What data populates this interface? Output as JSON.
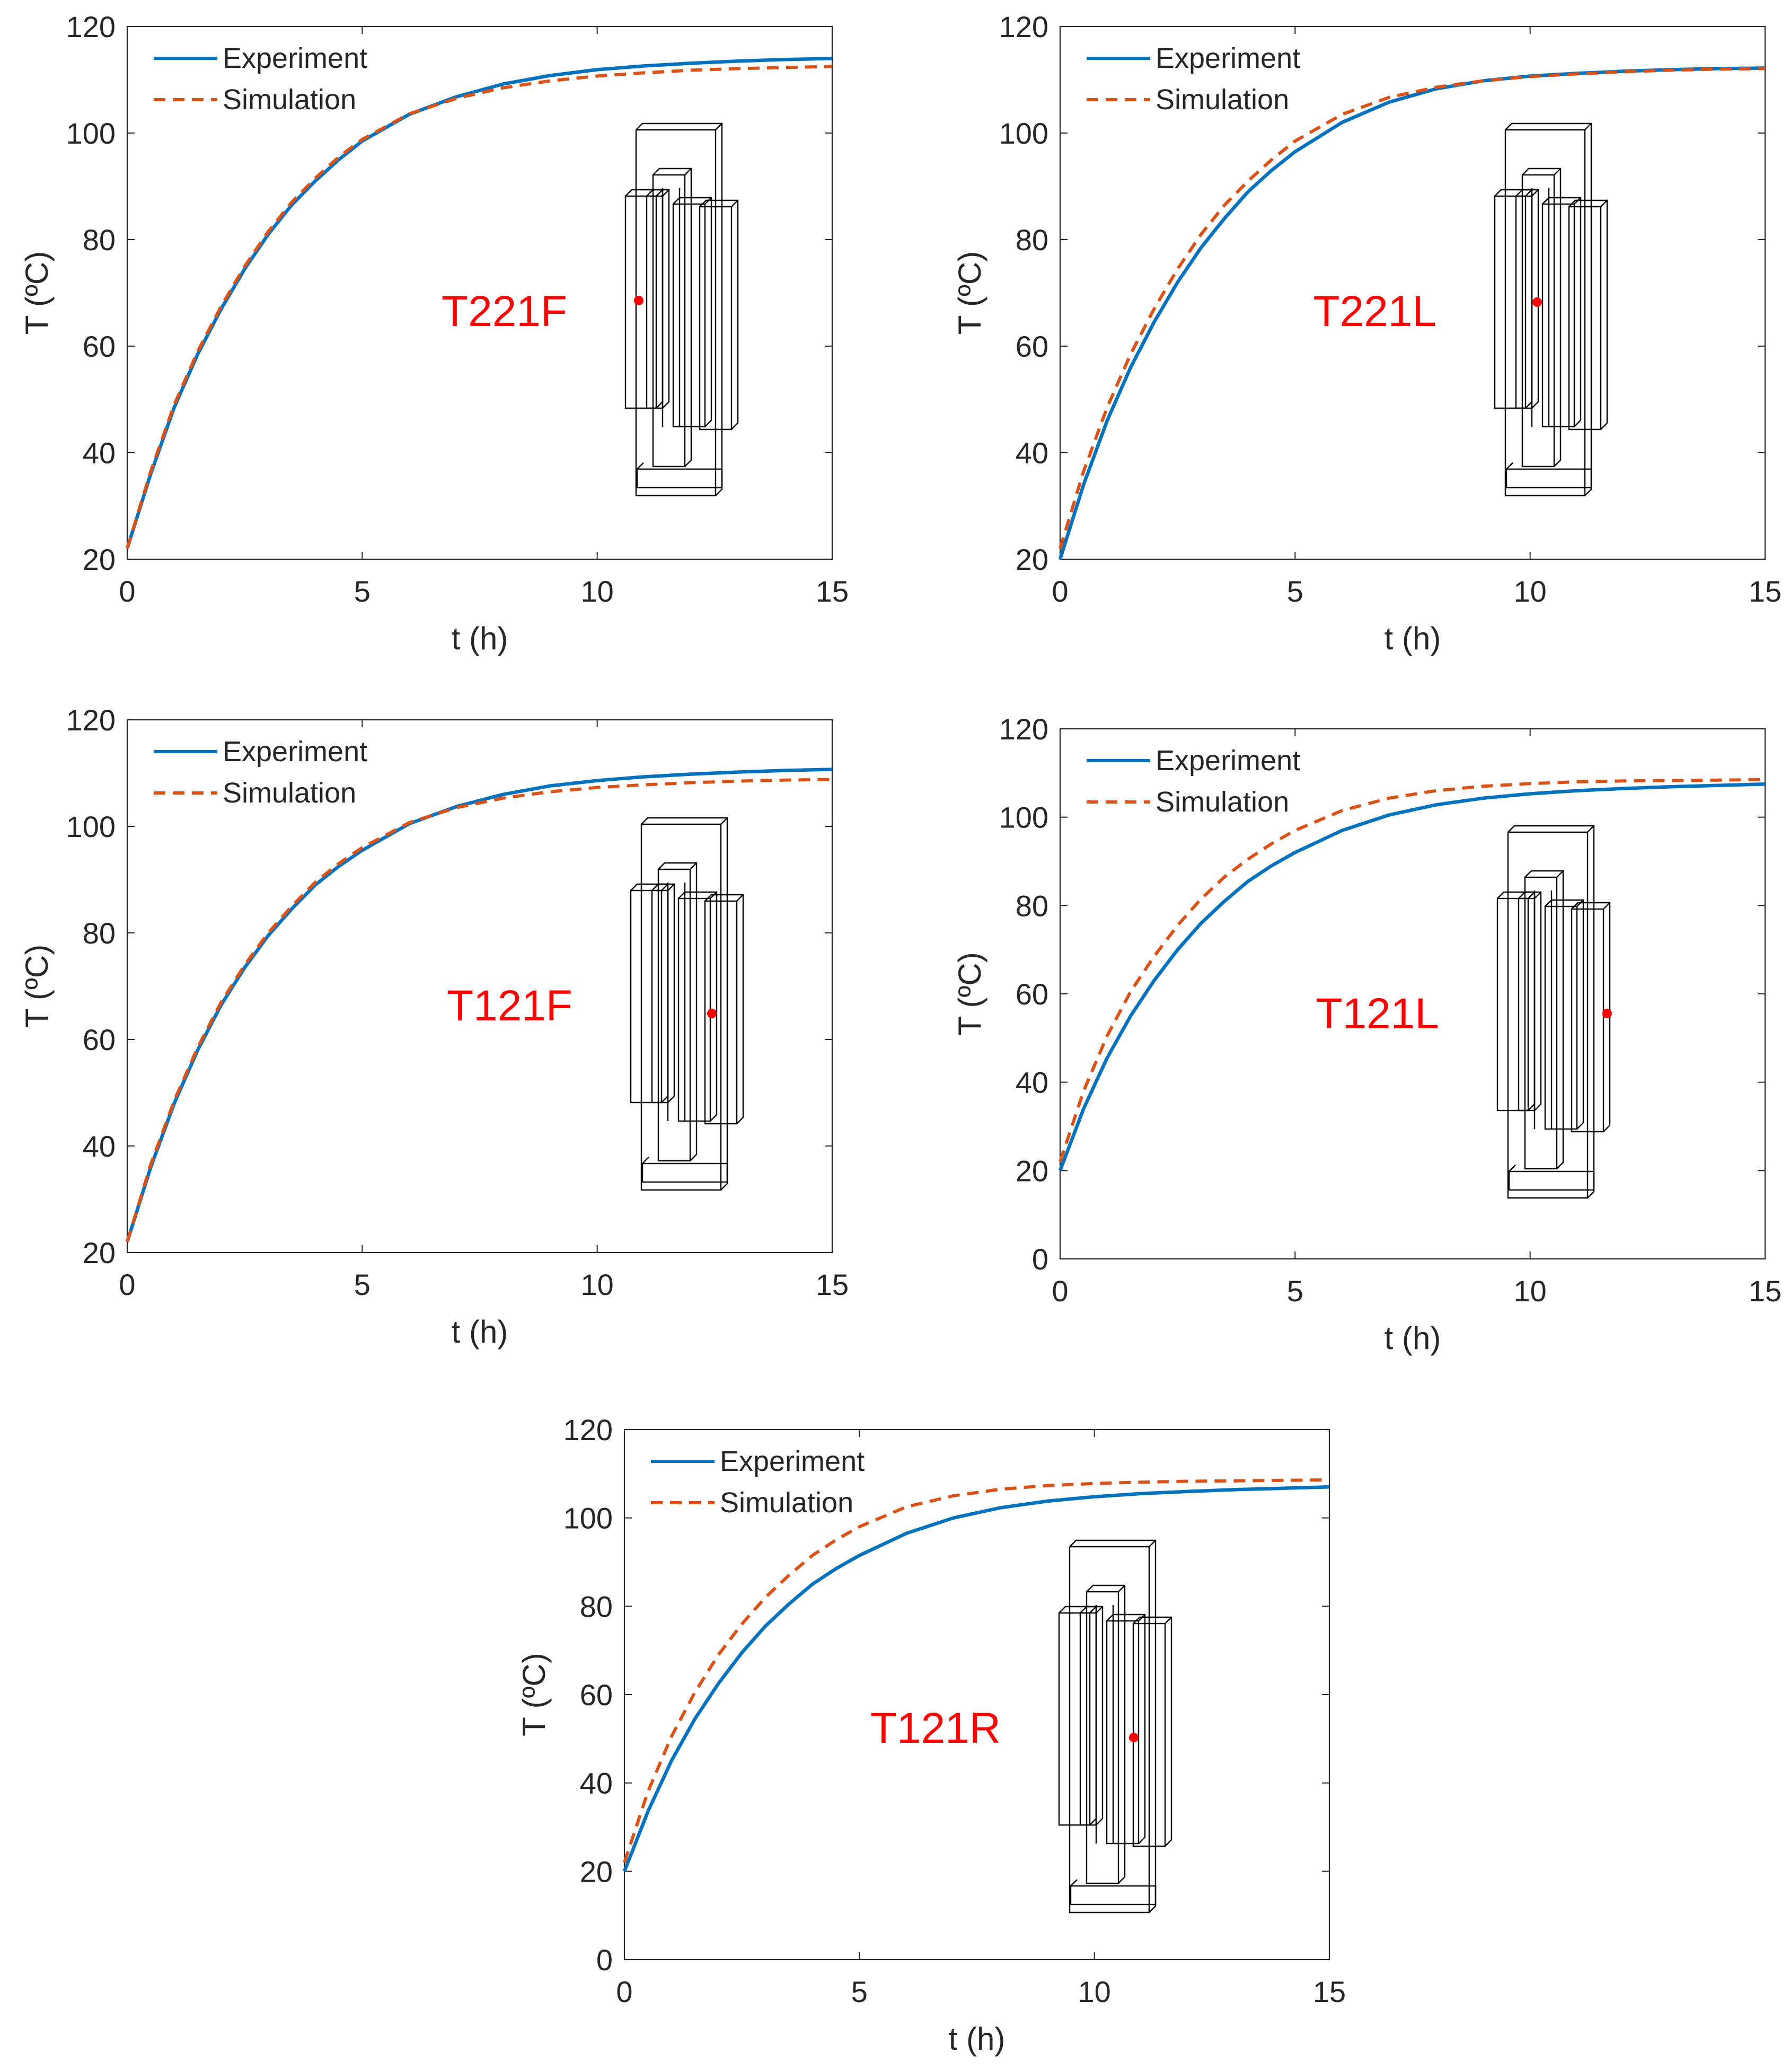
{
  "colors": {
    "experiment": "#0072bd",
    "simulation": "#d95319",
    "label": "#ff0000",
    "axis": "#262626",
    "schematic": "#000000",
    "sensor": "#ff0000"
  },
  "chart_data": [
    {
      "type": "line",
      "title": "",
      "xlabel": "t (h)",
      "ylabel": "T (ºC)",
      "xlim": [
        0,
        15
      ],
      "ylim": [
        20,
        120
      ],
      "xticks": [
        0,
        5,
        10,
        15
      ],
      "yticks": [
        20,
        40,
        60,
        80,
        100,
        120
      ],
      "legend": [
        "Experiment",
        "Simulation"
      ],
      "legend_location": "top-left",
      "annotation": "T221F",
      "sensor": "left column, front face",
      "grid": false,
      "series": [
        {
          "name": "Experiment",
          "style": "solid",
          "x": [
            0,
            0.5,
            1,
            1.5,
            2,
            2.5,
            3,
            3.5,
            4,
            4.5,
            5,
            6,
            7,
            8,
            9,
            10,
            11,
            12,
            13,
            14,
            15
          ],
          "y": [
            22,
            36,
            48.5,
            58.5,
            67,
            74.5,
            81,
            86.5,
            91,
            95,
            98.5,
            103.5,
            106.8,
            109.2,
            110.8,
            111.9,
            112.6,
            113.1,
            113.5,
            113.8,
            114
          ]
        },
        {
          "name": "Simulation",
          "style": "dashed",
          "x": [
            0,
            0.5,
            1,
            1.5,
            2,
            2.5,
            3,
            3.5,
            4,
            4.5,
            5,
            6,
            7,
            8,
            9,
            10,
            11,
            12,
            13,
            14,
            15
          ],
          "y": [
            22,
            36.5,
            49,
            59,
            67.5,
            75,
            81.5,
            87,
            91.5,
            95.5,
            98.8,
            103.6,
            106.5,
            108.5,
            109.8,
            110.7,
            111.3,
            111.8,
            112.1,
            112.3,
            112.5
          ]
        }
      ]
    },
    {
      "type": "line",
      "title": "",
      "xlabel": "t (h)",
      "ylabel": "T (ºC)",
      "xlim": [
        0,
        15
      ],
      "ylim": [
        20,
        120
      ],
      "xticks": [
        0,
        5,
        10,
        15
      ],
      "yticks": [
        20,
        40,
        60,
        80,
        100,
        120
      ],
      "legend": [
        "Experiment",
        "Simulation"
      ],
      "legend_location": "top-left",
      "annotation": "T221L",
      "sensor": "between left columns",
      "grid": false,
      "series": [
        {
          "name": "Experiment",
          "style": "solid",
          "x": [
            0,
            0.5,
            1,
            1.5,
            2,
            2.5,
            3,
            3.5,
            4,
            4.5,
            5,
            6,
            7,
            8,
            9,
            10,
            11,
            12,
            13,
            14,
            15
          ],
          "y": [
            20,
            34,
            46,
            56,
            64.5,
            72,
            78.5,
            84,
            89,
            93,
            96.5,
            102,
            105.8,
            108.3,
            109.8,
            110.7,
            111.2,
            111.6,
            111.9,
            112.1,
            112.2
          ]
        },
        {
          "name": "Simulation",
          "style": "dashed",
          "x": [
            0,
            0.5,
            1,
            1.5,
            2,
            2.5,
            3,
            3.5,
            4,
            4.5,
            5,
            6,
            7,
            8,
            9,
            10,
            11,
            12,
            13,
            14,
            15
          ],
          "y": [
            22,
            36.5,
            48.5,
            58.5,
            67,
            74.5,
            81,
            86.5,
            91,
            95,
            98.5,
            103.5,
            106.7,
            108.6,
            109.8,
            110.6,
            111.1,
            111.5,
            111.8,
            112,
            112.1
          ]
        }
      ]
    },
    {
      "type": "line",
      "title": "",
      "xlabel": "t (h)",
      "ylabel": "T (ºC)",
      "xlim": [
        0,
        15
      ],
      "ylim": [
        20,
        120
      ],
      "xticks": [
        0,
        5,
        10,
        15
      ],
      "yticks": [
        20,
        40,
        60,
        80,
        100,
        120
      ],
      "legend": [
        "Experiment",
        "Simulation"
      ],
      "legend_location": "top-left",
      "annotation": "T121F",
      "sensor": "right column, front face",
      "grid": false,
      "series": [
        {
          "name": "Experiment",
          "style": "solid",
          "x": [
            0,
            0.5,
            1,
            1.5,
            2,
            2.5,
            3,
            3.5,
            4,
            4.5,
            5,
            6,
            7,
            8,
            9,
            10,
            11,
            12,
            13,
            14,
            15
          ],
          "y": [
            22,
            36,
            48,
            58,
            66.5,
            73.5,
            79.5,
            84.5,
            89,
            92.5,
            95.5,
            100.5,
            103.7,
            106,
            107.6,
            108.6,
            109.3,
            109.8,
            110.2,
            110.5,
            110.7
          ]
        },
        {
          "name": "Simulation",
          "style": "dashed",
          "x": [
            0,
            0.5,
            1,
            1.5,
            2,
            2.5,
            3,
            3.5,
            4,
            4.5,
            5,
            6,
            7,
            8,
            9,
            10,
            11,
            12,
            13,
            14,
            15
          ],
          "y": [
            22,
            36.5,
            48.5,
            58.5,
            67,
            74,
            80,
            85,
            89.5,
            93,
            96,
            100.7,
            103.5,
            105.3,
            106.5,
            107.3,
            107.8,
            108.2,
            108.5,
            108.7,
            108.8
          ]
        }
      ]
    },
    {
      "type": "line",
      "title": "",
      "xlabel": "t (h)",
      "ylabel": "T (ºC)",
      "xlim": [
        0,
        15
      ],
      "ylim": [
        0,
        120
      ],
      "xticks": [
        0,
        5,
        10,
        15
      ],
      "yticks": [
        0,
        20,
        40,
        60,
        80,
        100,
        120
      ],
      "legend": [
        "Experiment",
        "Simulation"
      ],
      "legend_location": "top-left",
      "annotation": "T121L",
      "sensor": "right column, side face",
      "grid": false,
      "series": [
        {
          "name": "Experiment",
          "style": "solid",
          "x": [
            0,
            0.5,
            1,
            1.5,
            2,
            2.5,
            3,
            3.5,
            4,
            4.5,
            5,
            6,
            7,
            8,
            9,
            10,
            11,
            12,
            13,
            14,
            15
          ],
          "y": [
            20,
            34,
            45.5,
            55,
            63,
            70,
            76,
            81,
            85.5,
            89,
            92,
            97,
            100.5,
            102.8,
            104.3,
            105.3,
            106,
            106.5,
            106.9,
            107.2,
            107.5
          ]
        },
        {
          "name": "Simulation",
          "style": "dashed",
          "x": [
            0,
            0.5,
            1,
            1.5,
            2,
            2.5,
            3,
            3.5,
            4,
            4.5,
            5,
            6,
            7,
            8,
            9,
            10,
            11,
            12,
            13,
            14,
            15
          ],
          "y": [
            22,
            38,
            50.5,
            60.5,
            68.5,
            75.5,
            81.5,
            86.5,
            90.5,
            94,
            97,
            101.5,
            104.3,
            106,
            107,
            107.6,
            108,
            108.2,
            108.3,
            108.4,
            108.5
          ]
        }
      ]
    },
    {
      "type": "line",
      "title": "",
      "xlabel": "t (h)",
      "ylabel": "T (ºC)",
      "xlim": [
        0,
        15
      ],
      "ylim": [
        0,
        120
      ],
      "xticks": [
        0,
        5,
        10,
        15
      ],
      "yticks": [
        0,
        20,
        40,
        60,
        80,
        100,
        120
      ],
      "legend": [
        "Experiment",
        "Simulation"
      ],
      "legend_location": "top-left",
      "annotation": "T121R",
      "sensor": "right column, rear face",
      "grid": false,
      "series": [
        {
          "name": "Experiment",
          "style": "solid",
          "x": [
            0,
            0.5,
            1,
            1.5,
            2,
            2.5,
            3,
            3.5,
            4,
            4.5,
            5,
            6,
            7,
            8,
            9,
            10,
            11,
            12,
            13,
            14,
            15
          ],
          "y": [
            20,
            33.5,
            45,
            54.5,
            62.5,
            69.5,
            75.5,
            80.5,
            85,
            88.5,
            91.5,
            96.5,
            100,
            102.3,
            103.8,
            104.8,
            105.5,
            106,
            106.4,
            106.7,
            107
          ]
        },
        {
          "name": "Simulation",
          "style": "dashed",
          "x": [
            0,
            0.5,
            1,
            1.5,
            2,
            2.5,
            3,
            3.5,
            4,
            4.5,
            5,
            6,
            7,
            8,
            9,
            10,
            11,
            12,
            13,
            14,
            15
          ],
          "y": [
            22,
            38,
            50.5,
            60.5,
            69,
            76,
            82,
            87,
            91.5,
            95,
            98,
            102.5,
            105,
            106.5,
            107.3,
            107.8,
            108.1,
            108.3,
            108.4,
            108.5,
            108.6
          ]
        }
      ]
    }
  ]
}
